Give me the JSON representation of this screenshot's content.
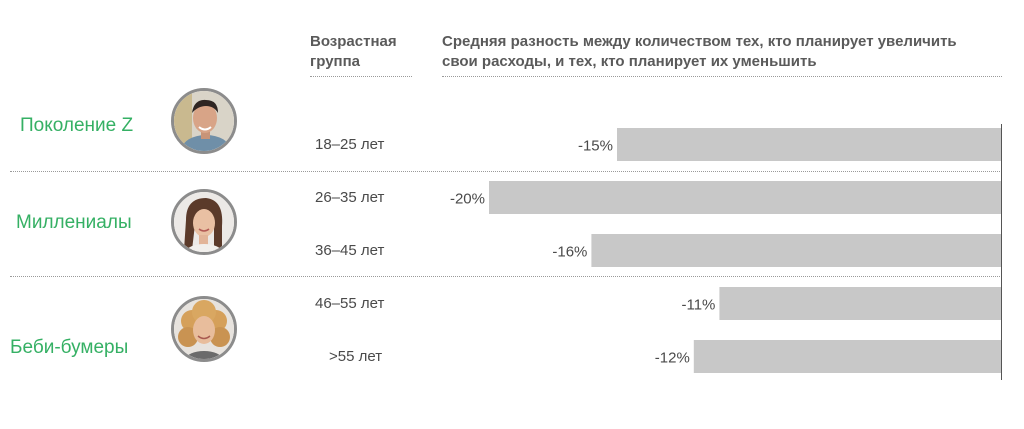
{
  "header": {
    "age_group_line1": "Возрастная",
    "age_group_line2": "группа",
    "diff_line1": "Средняя разность между количеством тех, кто планирует увеличить",
    "diff_line2": "свои расходы, и тех, кто планирует их уменьшить"
  },
  "generations": [
    {
      "label": "Поколение Z",
      "icon": "young-man-avatar-icon"
    },
    {
      "label": "Миллениалы",
      "icon": "young-woman-avatar-icon"
    },
    {
      "label": "Беби-бумеры",
      "icon": "older-woman-avatar-icon"
    }
  ],
  "colors": {
    "bar": "#c8c8c8",
    "generation_label": "#35b064",
    "text": "#4a4a4a"
  },
  "chart_data": {
    "type": "bar",
    "orientation": "horizontal",
    "categories": [
      "18–25 лет",
      "26–35 лет",
      "36–45 лет",
      "46–55 лет",
      ">55 лет"
    ],
    "values": [
      -15,
      -20,
      -16,
      -11,
      -12
    ],
    "value_labels": [
      "-15%",
      "-20%",
      "-16%",
      "-11%",
      "-12%"
    ],
    "unit": "%",
    "xlim": [
      -23,
      0
    ]
  }
}
